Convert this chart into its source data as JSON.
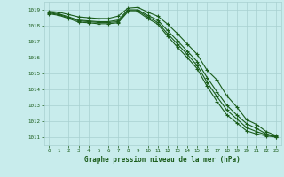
{
  "title": "Graphe pression niveau de la mer (hPa)",
  "background_color": "#c8ecec",
  "plot_bg_color": "#c8ecec",
  "grid_color": "#a8d0d0",
  "line_color": "#1a5c1a",
  "xlim": [
    -0.5,
    23.5
  ],
  "ylim": [
    1010.5,
    1019.5
  ],
  "yticks": [
    1011,
    1012,
    1013,
    1014,
    1015,
    1016,
    1017,
    1018,
    1019
  ],
  "xticks": [
    0,
    1,
    2,
    3,
    4,
    5,
    6,
    7,
    8,
    9,
    10,
    11,
    12,
    13,
    14,
    15,
    16,
    17,
    18,
    19,
    20,
    21,
    22,
    23
  ],
  "hours": [
    0,
    1,
    2,
    3,
    4,
    5,
    6,
    7,
    8,
    9,
    10,
    11,
    12,
    13,
    14,
    15,
    16,
    17,
    18,
    19,
    20,
    21,
    22,
    23
  ],
  "line1": [
    1018.9,
    1018.85,
    1018.7,
    1018.55,
    1018.5,
    1018.45,
    1018.45,
    1018.6,
    1019.1,
    1019.15,
    1018.85,
    1018.6,
    1018.1,
    1017.5,
    1016.85,
    1016.2,
    1015.2,
    1014.6,
    1013.6,
    1012.9,
    1012.1,
    1011.8,
    1011.35,
    1011.1
  ],
  "line2": [
    1018.85,
    1018.75,
    1018.55,
    1018.35,
    1018.3,
    1018.25,
    1018.25,
    1018.35,
    1019.0,
    1019.0,
    1018.65,
    1018.35,
    1017.7,
    1017.05,
    1016.4,
    1015.75,
    1014.75,
    1013.85,
    1013.0,
    1012.4,
    1011.85,
    1011.55,
    1011.2,
    1011.05
  ],
  "line3": [
    1018.8,
    1018.7,
    1018.5,
    1018.3,
    1018.25,
    1018.2,
    1018.2,
    1018.25,
    1018.95,
    1018.95,
    1018.55,
    1018.2,
    1017.5,
    1016.85,
    1016.2,
    1015.5,
    1014.45,
    1013.55,
    1012.7,
    1012.15,
    1011.6,
    1011.35,
    1011.15,
    1011.02
  ],
  "line4": [
    1018.75,
    1018.65,
    1018.45,
    1018.22,
    1018.18,
    1018.12,
    1018.12,
    1018.18,
    1018.88,
    1018.88,
    1018.45,
    1018.1,
    1017.35,
    1016.65,
    1016.0,
    1015.3,
    1014.2,
    1013.25,
    1012.4,
    1011.9,
    1011.4,
    1011.2,
    1011.08,
    1011.0
  ]
}
